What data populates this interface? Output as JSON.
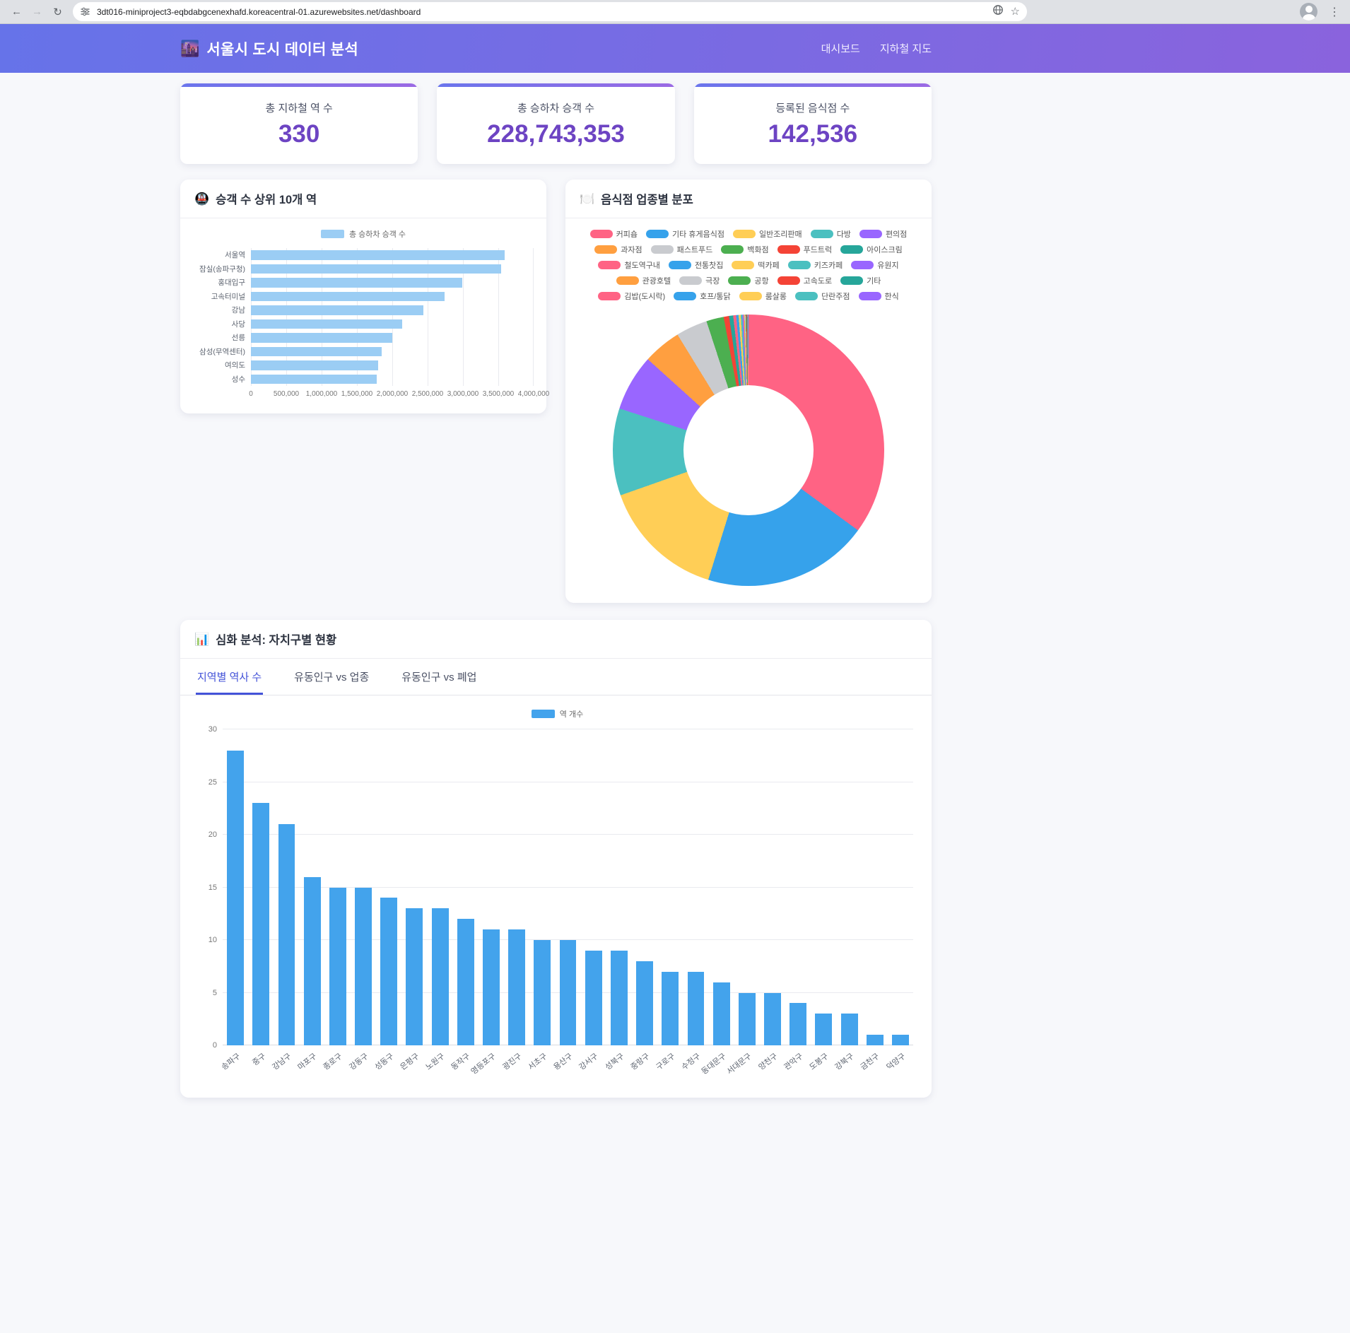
{
  "browser": {
    "url": "3dt016-miniproject3-eqbdabgcenexhafd.koreacentral-01.azurewebsites.net/dashboard"
  },
  "header": {
    "logo_icon": "🌆",
    "title": "서울시 도시 데이터 분석",
    "nav": [
      {
        "label": "대시보드"
      },
      {
        "label": "지하철 지도"
      }
    ]
  },
  "stats": [
    {
      "label": "총 지하철 역 수",
      "value": "330"
    },
    {
      "label": "총 승하차 승객 수",
      "value": "228,743,353"
    },
    {
      "label": "등록된 음식점 수",
      "value": "142,536"
    }
  ],
  "analysis": {
    "panel_icon": "📊",
    "panel_title": "심화 분석: 자치구별 현황",
    "tabs": [
      {
        "label": "지역별 역사 수",
        "active": true
      },
      {
        "label": "유동인구 vs 업종",
        "active": false
      },
      {
        "label": "유동인구 vs 폐업",
        "active": false
      }
    ]
  },
  "chart_data": [
    {
      "id": "top_stations",
      "type": "bar",
      "orientation": "horizontal",
      "panel_icon": "🚇",
      "panel_title": "승객 수 상위 10개 역",
      "legend": "총 승하차 승객 수",
      "categories": [
        "서울역",
        "잠실(송파구청)",
        "홍대입구",
        "고속터미널",
        "강남",
        "사당",
        "선릉",
        "삼성(무역센터)",
        "여의도",
        "성수"
      ],
      "values": [
        3600000,
        3550000,
        3000000,
        2750000,
        2450000,
        2150000,
        2000000,
        1850000,
        1800000,
        1780000
      ],
      "xlim": [
        0,
        4000000
      ],
      "xticks": [
        "0",
        "500,000",
        "1,000,000",
        "1,500,000",
        "2,000,000",
        "2,500,000",
        "3,000,000",
        "3,500,000",
        "4,000,000"
      ],
      "bar_color": "#9bcdf4",
      "grid": true
    },
    {
      "id": "restaurant_types",
      "type": "pie",
      "panel_icon": "🍽️",
      "panel_title": "음식점 업종별 분포",
      "labels": [
        "커피숍",
        "기타 휴게음식점",
        "일반조리판매",
        "다방",
        "편의점",
        "과자점",
        "패스트푸드",
        "백화점",
        "푸드트럭",
        "아이스크림",
        "철도역구내",
        "전통찻집",
        "떡카페",
        "키즈카페",
        "유원지",
        "관광호텔",
        "극장",
        "공항",
        "고속도로",
        "기타",
        "김밥(도시락)",
        "호프/통닭",
        "룸살롱",
        "단란주점",
        "한식"
      ],
      "values_pct": [
        35.5,
        20,
        15,
        10.5,
        6.8,
        4.6,
        3.8,
        2.1,
        0.65,
        0.5,
        0.35,
        0.3,
        0.25,
        0.2,
        0.15,
        0.12,
        0.1,
        0.08,
        0.07,
        0.06,
        0.05,
        0.04,
        0.03,
        0.02,
        0.01
      ],
      "palette": [
        "#FF6384",
        "#36A2EB",
        "#FFCE56",
        "#4BC0C0",
        "#9966FF",
        "#FF9F40",
        "#C9CBCF",
        "#4CAF50",
        "#F44336",
        "#26A69A"
      ],
      "donut_hole_ratio": 0.48,
      "legend_position": "top"
    },
    {
      "id": "district_stations",
      "type": "bar",
      "orientation": "vertical",
      "legend": "역 개수",
      "categories": [
        "송파구",
        "중구",
        "강남구",
        "마포구",
        "종로구",
        "강동구",
        "성동구",
        "은평구",
        "노원구",
        "동작구",
        "영등포구",
        "광진구",
        "서초구",
        "용산구",
        "강서구",
        "성북구",
        "중랑구",
        "구로구",
        "수정구",
        "동대문구",
        "서대문구",
        "양천구",
        "관악구",
        "도봉구",
        "강북구",
        "금천구",
        "덕양구"
      ],
      "values": [
        28,
        23,
        21,
        16,
        15,
        15,
        14,
        13,
        13,
        12,
        11,
        11,
        10,
        10,
        9,
        9,
        8,
        7,
        7,
        6,
        5,
        5,
        4,
        3,
        3,
        1,
        1
      ],
      "ylim": [
        0,
        30
      ],
      "yticks": [
        0,
        5,
        10,
        15,
        20,
        25,
        30
      ],
      "bar_color": "#43a3ec",
      "grid": true
    }
  ]
}
